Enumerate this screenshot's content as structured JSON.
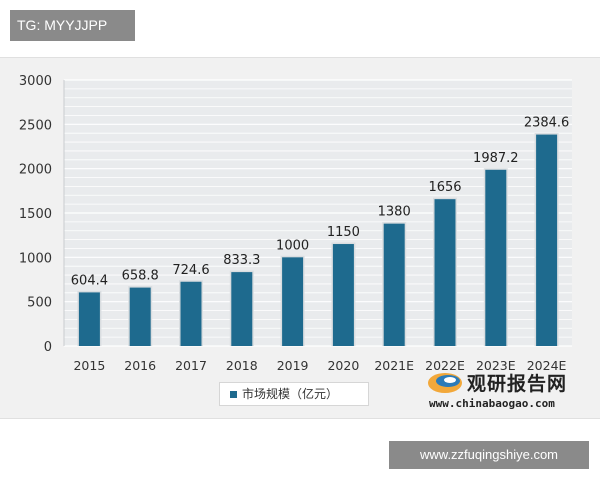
{
  "watermark_top": "TG: MYYJJPP",
  "watermark_bottom": "www.zzfuqingshiye.com",
  "logo": {
    "cn_text": "观研报告网",
    "url_text": "www.chinabaogao.com"
  },
  "colors": {
    "bar": "#1e6a8e",
    "bar_edge": "#d9dde0",
    "grid": "#ffffff",
    "background": "#f1f1f1"
  },
  "chart_data": {
    "type": "bar",
    "categories": [
      "2015",
      "2016",
      "2017",
      "2018",
      "2019",
      "2020",
      "2021E",
      "2022E",
      "2023E",
      "2024E"
    ],
    "series": [
      {
        "name": "市场规模（亿元）",
        "values": [
          604.4,
          658.8,
          724.6,
          833.3,
          1000,
          1150,
          1380,
          1656,
          1987.2,
          2384.6
        ],
        "labels": [
          "604.4",
          "658.8",
          "724.6",
          "833.3",
          "1000",
          "1150",
          "1380",
          "1656",
          "1987.2",
          "2384.6"
        ]
      }
    ],
    "ylim": [
      0,
      3000
    ],
    "yticks": [
      "0",
      "500",
      "1000",
      "1500",
      "2000",
      "2500",
      "3000"
    ],
    "ytick_values": [
      0,
      500,
      1000,
      1500,
      2000,
      2500,
      3000
    ],
    "grid": true,
    "legend_position": "bottom-center"
  }
}
